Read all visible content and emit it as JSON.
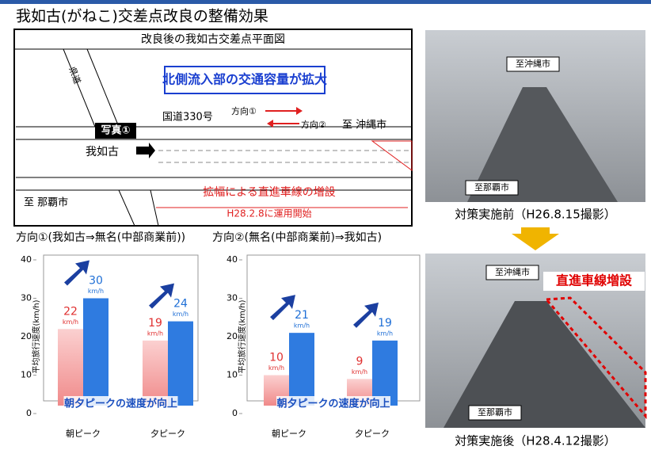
{
  "title": "我如古(がねこ)交差点改良の整備効果",
  "map": {
    "title": "改良後の我如古交差点平面図",
    "banner": "北側流入部の交通容量が拡大",
    "road": "国道330号",
    "direction1": "方向①",
    "direction2": "方向②",
    "to_okinawa": "至 沖縄市",
    "photo_label": "写真①",
    "place": "我如古",
    "to_naha": "至 那覇市",
    "widening": "拡幅による直進車線の増設",
    "start": "H28.2.8に運用開始",
    "prefectural_road": "県道"
  },
  "photos": [
    {
      "to_north": "至沖縄市",
      "to_south": "至那覇市",
      "caption": "対策実施前（H26.8.15撮影）"
    },
    {
      "to_north": "至沖縄市",
      "to_south": "至那覇市",
      "badge": "直進車線増設",
      "caption": "対策実施後（H28.4.12撮影）"
    }
  ],
  "chart_data": [
    {
      "type": "bar",
      "title": "方向①(我如古⇒無名(中部商業前))",
      "y_label": "平均旅行速度(km/h)",
      "unit": "km/h",
      "annotation": "朝夕ピークの速度が向上",
      "categories": [
        "朝ピーク",
        "夕ピーク"
      ],
      "series": [
        {
          "color": "#f49a9a",
          "values": [
            22,
            19
          ]
        },
        {
          "color": "#2f7be0",
          "values": [
            30,
            24
          ]
        }
      ],
      "ylim": [
        0,
        40
      ],
      "yticks": [
        0,
        10,
        20,
        30,
        40
      ]
    },
    {
      "type": "bar",
      "title": "方向②(無名(中部商業前)⇒我如古)",
      "y_label": "平均旅行速度(km/h)",
      "unit": "km/h",
      "annotation": "朝夕ピークの速度が向上",
      "categories": [
        "朝ピーク",
        "夕ピーク"
      ],
      "series": [
        {
          "color": "#f49a9a",
          "values": [
            10,
            9
          ]
        },
        {
          "color": "#2f7be0",
          "values": [
            21,
            19
          ]
        }
      ],
      "ylim": [
        0,
        40
      ],
      "yticks": [
        0,
        10,
        20,
        30,
        40
      ]
    }
  ]
}
